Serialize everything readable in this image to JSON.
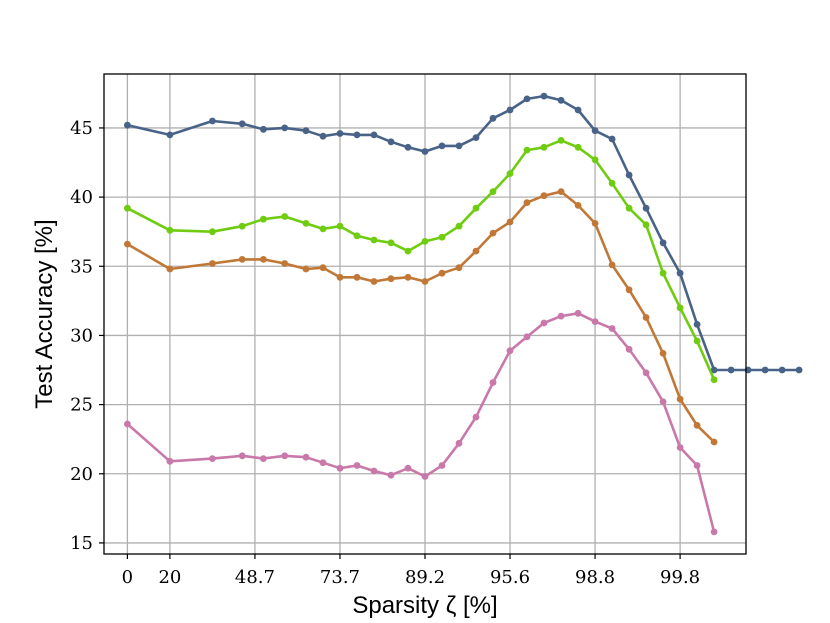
{
  "chart_data": {
    "type": "line",
    "title": "",
    "xlabel": "Sparsity ζ [%]",
    "ylabel": "Test Accuracy [%]",
    "x_ticks": [
      {
        "label": "0",
        "index": 0
      },
      {
        "label": "20",
        "index": 1
      },
      {
        "label": "48.7",
        "index": 3
      },
      {
        "label": "73.7",
        "index": 5
      },
      {
        "label": "89.2",
        "index": 7
      },
      {
        "label": "95.6",
        "index": 9
      },
      {
        "label": "98.8",
        "index": 11
      },
      {
        "label": "99.8",
        "index": 13
      }
    ],
    "x_index_range": [
      -0.55,
      14.55
    ],
    "x_positions": [
      0,
      1,
      2,
      3,
      3.5,
      4,
      4.5,
      5,
      5.5,
      6,
      6.5,
      7,
      7.5,
      8,
      8.5,
      9,
      9.5,
      10,
      10.5,
      11,
      11.5,
      12,
      12.5,
      13,
      13.5,
      14,
      14.5,
      15,
      15.5
    ],
    "y_ticks": [
      15,
      20,
      25,
      30,
      35,
      40,
      45
    ],
    "ylim": [
      14.2,
      48.9
    ],
    "grid": true,
    "legend": "none",
    "series": [
      {
        "color": "#486387",
        "x": [
          0,
          1,
          2,
          2.7,
          3.2,
          3.7,
          4.2,
          4.6,
          5.0,
          5.4,
          5.8,
          6.2,
          6.6,
          7.0,
          7.4,
          7.8,
          8.2,
          8.6,
          9.0,
          9.4,
          9.8,
          10.2,
          10.6,
          11.0,
          11.4,
          11.8,
          12.2,
          12.6,
          13.0,
          13.4,
          13.8,
          14.2,
          14.6,
          15.0,
          15.4,
          15.8
        ],
        "y": [
          45.2,
          44.5,
          45.5,
          45.3,
          44.9,
          45.0,
          44.8,
          44.4,
          44.6,
          44.5,
          44.5,
          44.0,
          43.6,
          43.3,
          43.7,
          43.7,
          44.3,
          45.7,
          46.3,
          47.1,
          47.3,
          47.0,
          46.3,
          44.8,
          44.2,
          41.6,
          39.2,
          36.7,
          34.5,
          30.8,
          27.5,
          27.5,
          27.5,
          27.5,
          27.5,
          27.5
        ]
      },
      {
        "color": "#6fcc11",
        "x": [
          0,
          1,
          2,
          2.7,
          3.2,
          3.7,
          4.2,
          4.6,
          5.0,
          5.4,
          5.8,
          6.2,
          6.6,
          7.0,
          7.4,
          7.8,
          8.2,
          8.6,
          9.0,
          9.4,
          9.8,
          10.2,
          10.6,
          11.0,
          11.4,
          11.8,
          12.2,
          12.6,
          13.0,
          13.4,
          13.8
        ],
        "y": [
          39.2,
          37.6,
          37.5,
          37.9,
          38.4,
          38.6,
          38.1,
          37.7,
          37.9,
          37.2,
          36.9,
          36.7,
          36.1,
          36.8,
          37.1,
          37.9,
          39.2,
          40.4,
          41.7,
          43.4,
          43.6,
          44.1,
          43.6,
          42.7,
          41.0,
          39.2,
          38.0,
          34.5,
          32.0,
          29.6,
          26.8
        ]
      },
      {
        "color": "#c17837",
        "x": [
          0,
          1,
          2,
          2.7,
          3.2,
          3.7,
          4.2,
          4.6,
          5.0,
          5.4,
          5.8,
          6.2,
          6.6,
          7.0,
          7.4,
          7.8,
          8.2,
          8.6,
          9.0,
          9.4,
          9.8,
          10.2,
          10.6,
          11.0,
          11.4,
          11.8,
          12.2,
          12.6,
          13.0,
          13.4,
          13.8
        ],
        "y": [
          36.6,
          34.8,
          35.2,
          35.5,
          35.5,
          35.2,
          34.8,
          34.9,
          34.2,
          34.2,
          33.9,
          34.1,
          34.2,
          33.9,
          34.5,
          34.9,
          36.1,
          37.4,
          38.2,
          39.6,
          40.1,
          40.4,
          39.4,
          38.1,
          35.1,
          33.3,
          31.3,
          28.7,
          25.4,
          23.5,
          22.3
        ]
      },
      {
        "color": "#c979a9",
        "x": [
          0,
          1,
          2,
          2.7,
          3.2,
          3.7,
          4.2,
          4.6,
          5.0,
          5.4,
          5.8,
          6.2,
          6.6,
          7.0,
          7.4,
          7.8,
          8.2,
          8.6,
          9.0,
          9.4,
          9.8,
          10.2,
          10.6,
          11.0,
          11.4,
          11.8,
          12.2,
          12.6,
          13.0,
          13.4,
          13.8
        ],
        "y": [
          23.6,
          20.9,
          21.1,
          21.3,
          21.1,
          21.3,
          21.2,
          20.8,
          20.4,
          20.6,
          20.2,
          19.9,
          20.4,
          19.8,
          20.6,
          22.2,
          24.1,
          26.6,
          28.9,
          29.9,
          30.9,
          31.4,
          31.6,
          31.0,
          30.5,
          29.0,
          27.3,
          25.2,
          21.9,
          20.6,
          15.8
        ]
      }
    ]
  }
}
